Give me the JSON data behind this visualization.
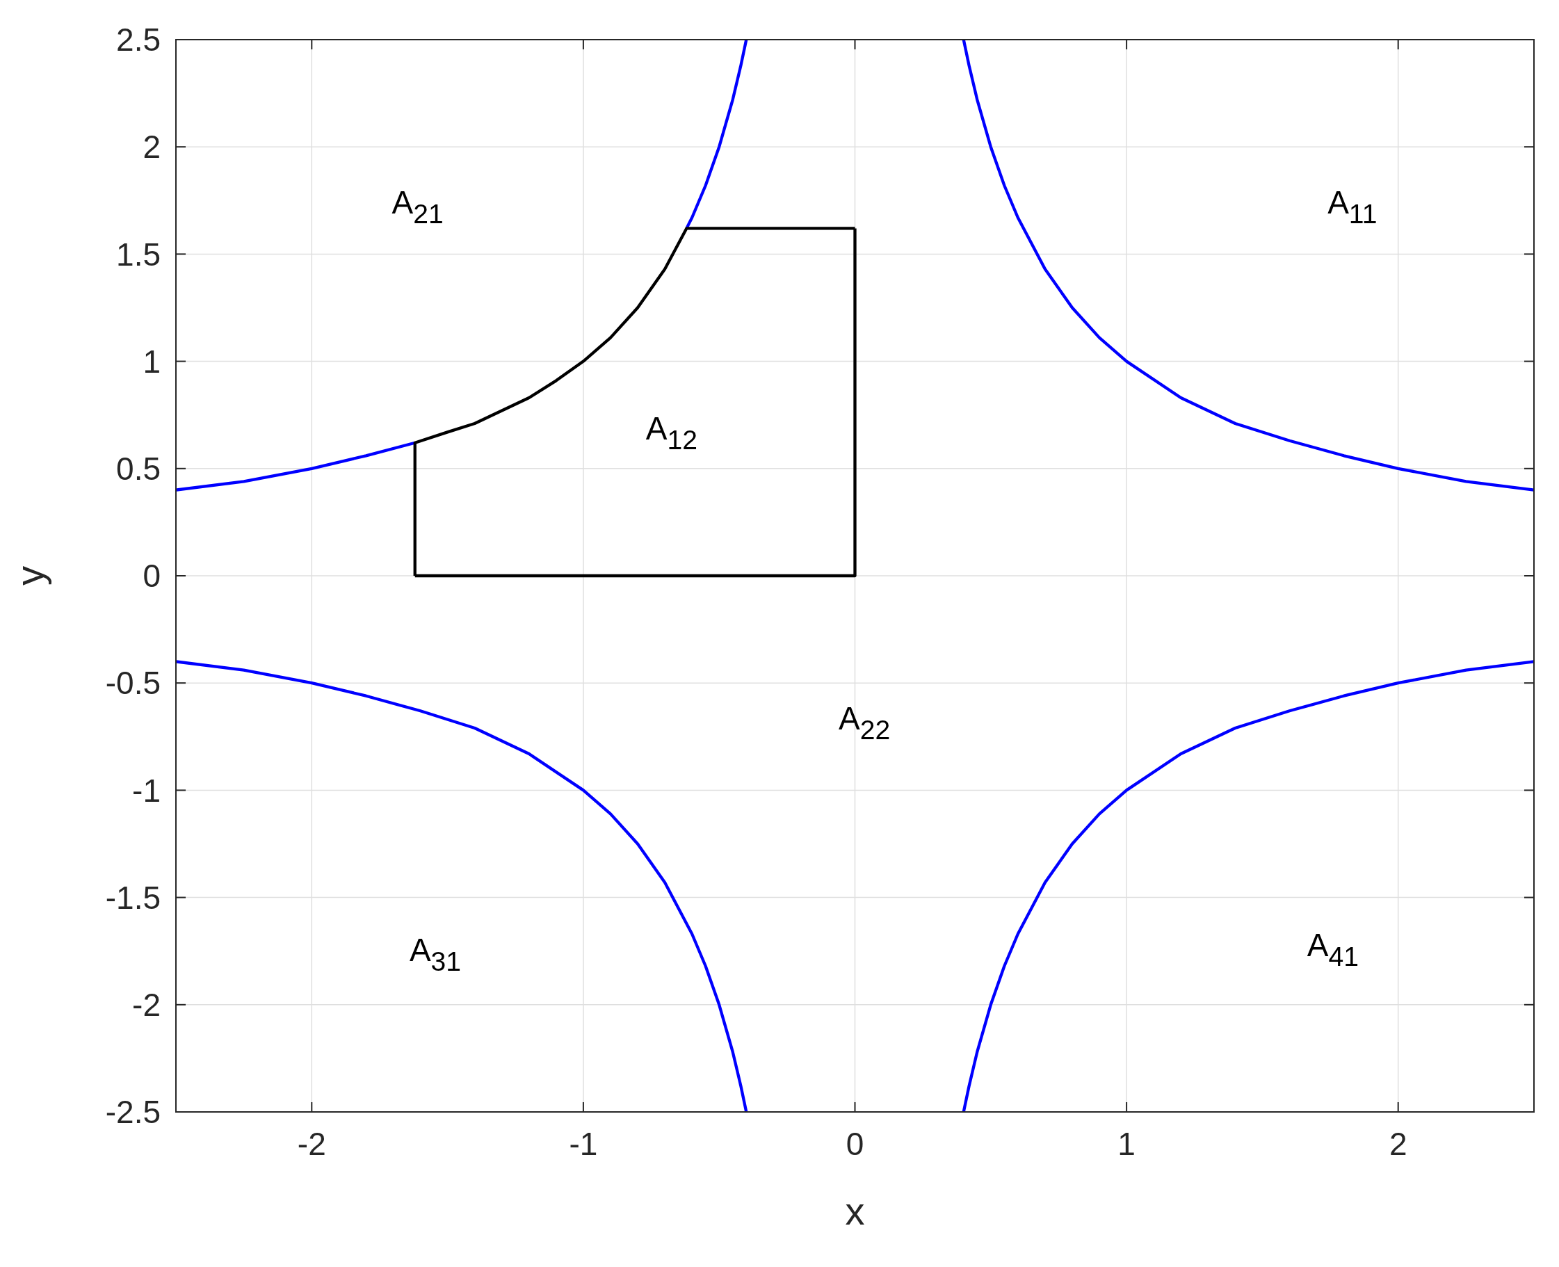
{
  "chart_data": {
    "type": "line",
    "xlabel": "x",
    "ylabel": "y",
    "xlim": [
      -2.5,
      2.5
    ],
    "ylim": [
      -2.5,
      2.5
    ],
    "xticks": [
      -2,
      -1,
      0,
      1,
      2
    ],
    "yticks": [
      -2.5,
      -2,
      -1.5,
      -1,
      -0.5,
      0,
      0.5,
      1,
      1.5,
      2,
      2.5
    ],
    "grid": true,
    "series": [
      {
        "color": "#0000ff",
        "x": [
          0.4,
          0.42,
          0.45,
          0.5,
          0.55,
          0.6,
          0.7,
          0.8,
          0.9,
          1,
          1.2,
          1.4,
          1.6,
          1.8,
          2,
          2.25,
          2.5
        ],
        "values": [
          2.5,
          2.38,
          2.22,
          2,
          1.82,
          1.67,
          1.43,
          1.25,
          1.11,
          1,
          0.83,
          0.71,
          0.63,
          0.56,
          0.5,
          0.44,
          0.4
        ]
      },
      {
        "color": "#0000ff",
        "x": [
          -0.4,
          -0.42,
          -0.45,
          -0.5,
          -0.55,
          -0.6,
          -0.62,
          -1,
          -1.62,
          -1.8,
          -2,
          -2.25,
          -2.5
        ],
        "values": [
          2.5,
          2.38,
          2.22,
          2,
          1.82,
          1.67,
          1.62,
          null,
          0.62,
          0.56,
          0.5,
          0.44,
          0.4
        ]
      },
      {
        "color": "#0000ff",
        "x": [
          -0.4,
          -0.42,
          -0.45,
          -0.5,
          -0.55,
          -0.6,
          -0.7,
          -0.8,
          -0.9,
          -1,
          -1.2,
          -1.4,
          -1.6,
          -1.8,
          -2,
          -2.25,
          -2.5
        ],
        "values": [
          -2.5,
          -2.38,
          -2.22,
          -2,
          -1.82,
          -1.67,
          -1.43,
          -1.25,
          -1.11,
          -1,
          -0.83,
          -0.71,
          -0.63,
          -0.56,
          -0.5,
          -0.44,
          -0.4
        ]
      },
      {
        "color": "#0000ff",
        "x": [
          0.4,
          0.42,
          0.45,
          0.5,
          0.55,
          0.6,
          0.7,
          0.8,
          0.9,
          1,
          1.2,
          1.4,
          1.6,
          1.8,
          2,
          2.25,
          2.5
        ],
        "values": [
          -2.5,
          -2.38,
          -2.22,
          -2,
          -1.82,
          -1.67,
          -1.43,
          -1.25,
          -1.11,
          -1,
          -0.83,
          -0.71,
          -0.63,
          -0.56,
          -0.5,
          -0.44,
          -0.4
        ]
      },
      {
        "color": "#000000",
        "x": [
          -1.62,
          -1.62,
          -1.5,
          -1.4,
          -1.3,
          -1.2,
          -1.1,
          -1,
          -0.9,
          -0.8,
          -0.7,
          -0.62,
          0
        ],
        "values": [
          0,
          0.62,
          0.67,
          0.71,
          0.77,
          0.83,
          0.91,
          1,
          1.11,
          1.25,
          1.43,
          1.62,
          1.62
        ]
      },
      {
        "color": "#000000",
        "x": [
          -1.62,
          0,
          0
        ],
        "values": [
          0,
          0,
          1.62
        ]
      }
    ],
    "annotations": [
      "A$_{21}$",
      "A$_{11}$",
      "A$_{12}$",
      "A$_{22}$",
      "A$_{31}$",
      "A$_{41}$"
    ]
  }
}
